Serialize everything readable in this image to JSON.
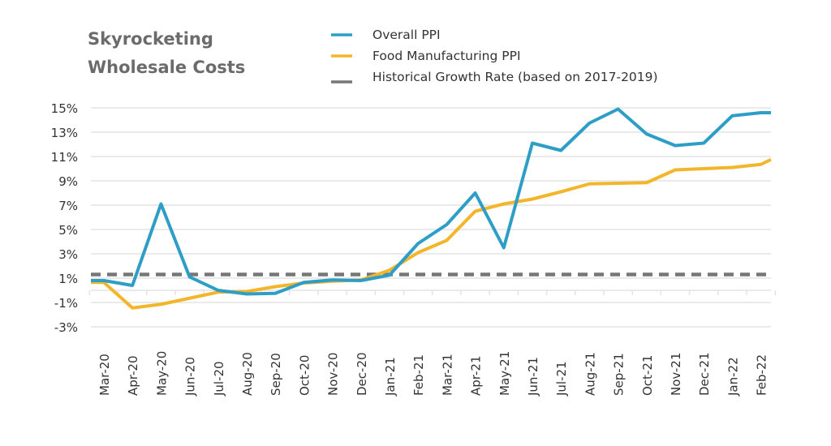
{
  "chart_data": {
    "type": "line",
    "title": "Skyrocketing Wholesale Costs",
    "title_lines": [
      "Skyrocketing",
      "Wholesale Costs"
    ],
    "xlabel": "",
    "ylabel": "",
    "categories": [
      "Mar-20",
      "Apr-20",
      "May-20",
      "Jun-20",
      "Jul-20",
      "Aug-20",
      "Sep-20",
      "Oct-20",
      "Nov-20",
      "Dec-20",
      "Jan-21",
      "Feb-21",
      "Mar-21",
      "Apr-21",
      "May-21",
      "Jun-21",
      "Jul-21",
      "Aug-21",
      "Sep-21",
      "Oct-21",
      "Nov-21",
      "Dec-21",
      "Jan-22",
      "Feb-22"
    ],
    "yticks": [
      "15%",
      "13%",
      "11%",
      "9%",
      "7%",
      "5%",
      "3%",
      "1%",
      "-1%",
      "-3%"
    ],
    "ytick_values": [
      15,
      13,
      11,
      9,
      7,
      5,
      3,
      1,
      -1,
      -3
    ],
    "ylim": [
      -3,
      15
    ],
    "grid": true,
    "legend_position": "top",
    "series": [
      {
        "name": "Overall PPI",
        "color": "#2e9ec7",
        "style": "solid",
        "values": [
          0.8,
          0.4,
          7.1,
          1.1,
          0.0,
          -0.3,
          -0.25,
          0.65,
          0.85,
          0.8,
          1.25,
          3.85,
          5.4,
          8.0,
          3.5,
          12.1,
          11.5,
          13.75,
          14.9,
          12.85,
          11.9,
          12.1,
          14.35,
          14.6
        ]
      },
      {
        "name": "Food Manufacturing PPI",
        "color": "#f3b52a",
        "style": "solid",
        "values": [
          0.65,
          -1.45,
          -1.15,
          -0.65,
          -0.15,
          -0.1,
          0.3,
          0.6,
          0.75,
          0.85,
          1.65,
          3.1,
          4.1,
          6.5,
          7.1,
          7.5,
          8.1,
          8.75,
          8.8,
          8.85,
          9.9,
          10.0,
          10.1,
          10.35
        ]
      },
      {
        "name": "Historical Growth Rate (based on 2017-2019)",
        "color": "#777777",
        "style": "dashed",
        "values": [
          1.3,
          1.3,
          1.3,
          1.3,
          1.3,
          1.3,
          1.3,
          1.3,
          1.3,
          1.3,
          1.3,
          1.3,
          1.3,
          1.3,
          1.3,
          1.3,
          1.3,
          1.3,
          1.3,
          1.3,
          1.3,
          1.3,
          1.3,
          1.3
        ]
      }
    ]
  }
}
